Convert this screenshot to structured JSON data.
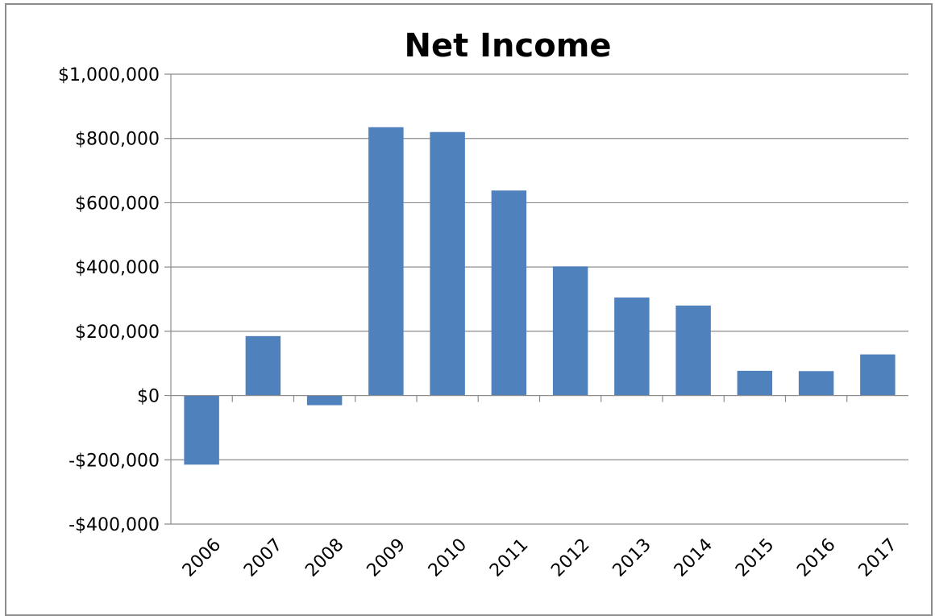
{
  "chart_data": {
    "type": "bar",
    "title": "Net Income",
    "xlabel": "",
    "ylabel": "",
    "categories": [
      "2006",
      "2007",
      "2008",
      "2009",
      "2010",
      "2011",
      "2012",
      "2013",
      "2014",
      "2015",
      "2016",
      "2017"
    ],
    "values": [
      -215000,
      185000,
      -30000,
      835000,
      820000,
      638000,
      402000,
      305000,
      280000,
      77000,
      76000,
      128000
    ],
    "ylim": [
      -400000,
      1000000
    ],
    "yticks": [
      1000000,
      800000,
      600000,
      400000,
      200000,
      0,
      -200000,
      -400000
    ],
    "ytick_labels": [
      "$1,000,000",
      "$800,000",
      "$600,000",
      "$400,000",
      "$200,000",
      "$0",
      "-$200,000",
      "-$400,000"
    ],
    "bar_color": "#4f81bd",
    "grid": true,
    "legend": "none"
  }
}
